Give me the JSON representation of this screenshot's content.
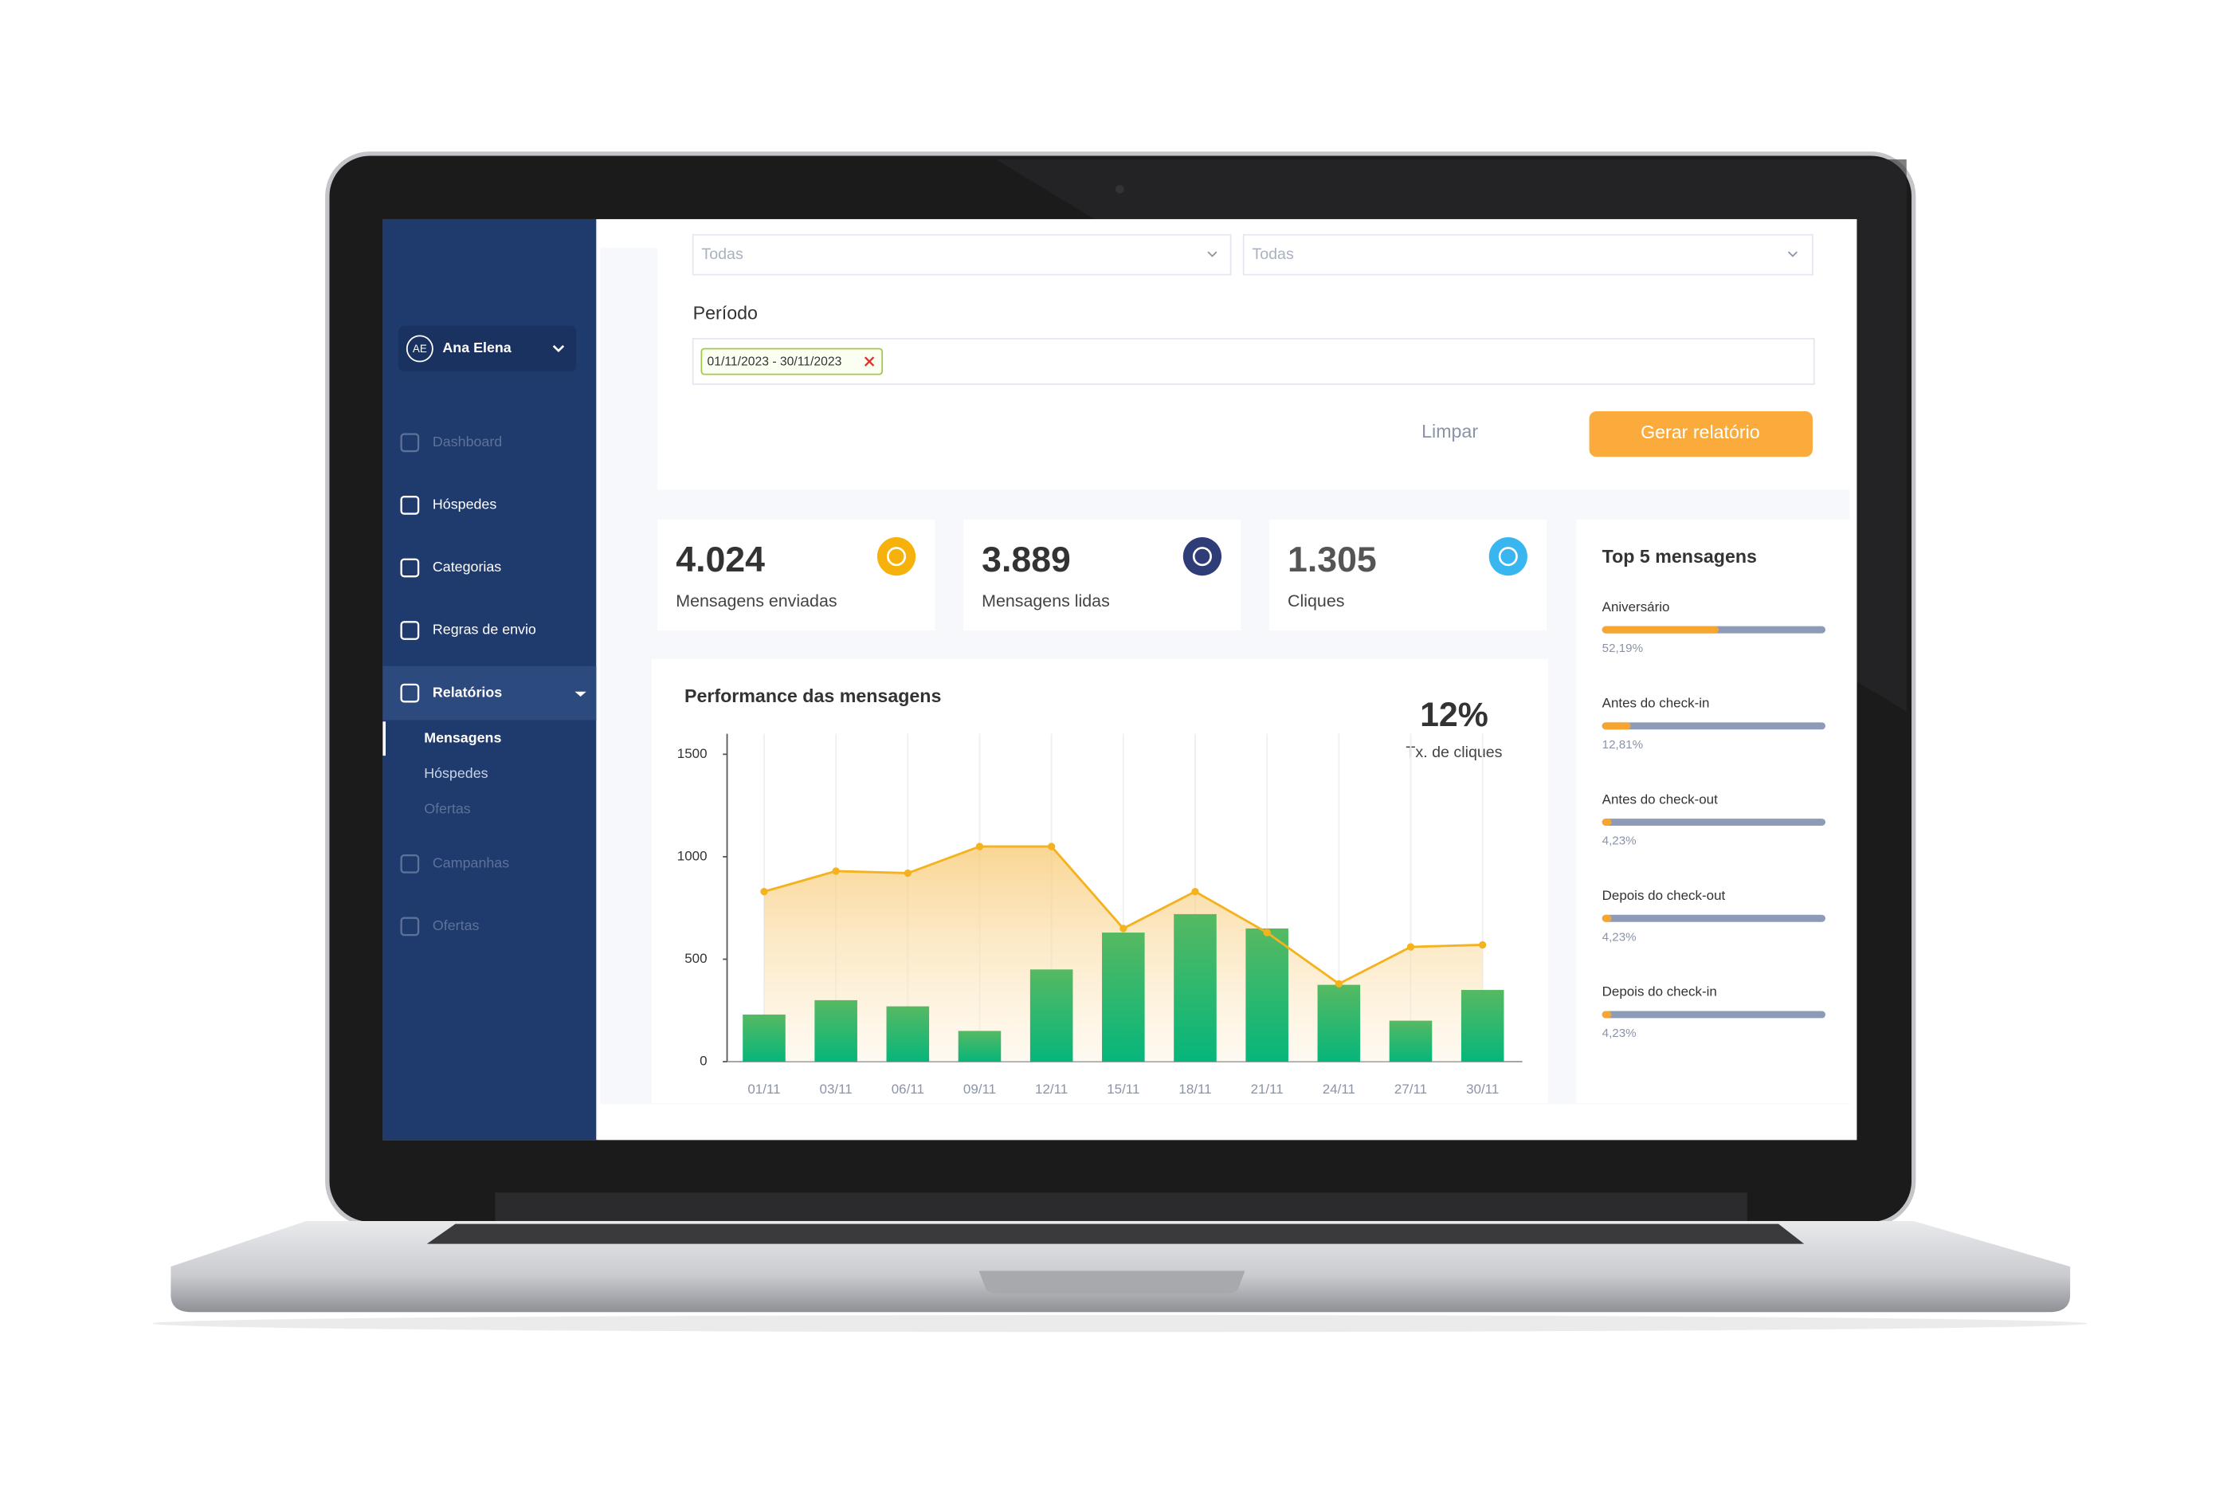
{
  "user": {
    "initials": "AE",
    "name": "Ana Elena"
  },
  "sidebar": {
    "items": [
      "Dashboard",
      "Hóspedes",
      "Categorias",
      "Regras de envio",
      "Relatórios",
      "Campanhas",
      "Ofertas"
    ],
    "submenu": [
      "Mensagens",
      "Hóspedes",
      "Ofertas"
    ]
  },
  "filters": {
    "select_1": "Todas",
    "select_2": "Todas",
    "period_label": "Período",
    "period_value": "01/11/2023 - 30/11/2023",
    "clear_button": "Limpar",
    "submit_button": "Gerar relatório"
  },
  "kpis": [
    {
      "value": "4.024",
      "label": "Mensagens enviadas"
    },
    {
      "value": "3.889",
      "label": "Mensagens lidas"
    },
    {
      "value": "1.305",
      "label": "Cliques"
    }
  ],
  "chart_data": {
    "type": "bar",
    "title": "Performance das mensagens",
    "annotation": {
      "value": "12%",
      "label": "Tx. de cliques"
    },
    "categories": [
      "01/11",
      "03/11",
      "06/11",
      "09/11",
      "12/11",
      "15/11",
      "18/11",
      "21/11",
      "24/11",
      "27/11",
      "30/11"
    ],
    "series": [
      {
        "type": "bar",
        "color": "#0db57a",
        "values": [
          230,
          300,
          270,
          150,
          450,
          630,
          720,
          650,
          375,
          200,
          350
        ]
      },
      {
        "type": "line",
        "color": "#f5b21f",
        "values": [
          830,
          930,
          920,
          1050,
          1050,
          650,
          830,
          630,
          380,
          560,
          570
        ]
      }
    ],
    "ylim": [
      0,
      1600
    ],
    "yticks": [
      0,
      500,
      1000,
      1500
    ],
    "grid": true
  },
  "top5": {
    "title": "Top 5 mensagens",
    "items": [
      {
        "name": "Aniversário",
        "value": 52.19,
        "label": "52,19%"
      },
      {
        "name": "Antes do check-in",
        "value": 12.81,
        "label": "12,81%"
      },
      {
        "name": "Antes do check-out",
        "value": 4.23,
        "label": "4,23%"
      },
      {
        "name": "Depois do check-out",
        "value": 4.23,
        "label": "4,23%"
      },
      {
        "name": "Depois do check-in",
        "value": 4.23,
        "label": "4,23%"
      }
    ]
  }
}
